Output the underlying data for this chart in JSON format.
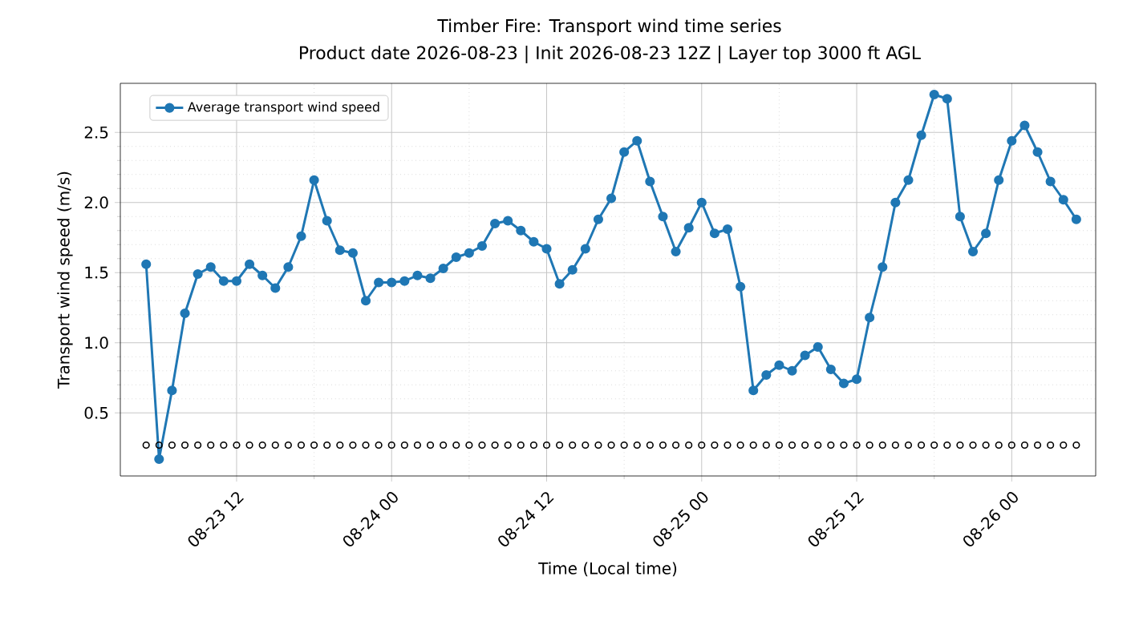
{
  "chart_data": {
    "type": "line",
    "title": "Timber Fire: Transport wind time series",
    "subtitle": "Product date 2026-08-23 | Init 2026-08-23 12Z | Layer top 3000 ft AGL",
    "xlabel": "Time (Local time)",
    "ylabel": "Transport wind speed (m/s)",
    "x": [
      "2026-08-23T05:00",
      "2026-08-23T06:00",
      "2026-08-23T07:00",
      "2026-08-23T08:00",
      "2026-08-23T09:00",
      "2026-08-23T10:00",
      "2026-08-23T11:00",
      "2026-08-23T12:00",
      "2026-08-23T13:00",
      "2026-08-23T14:00",
      "2026-08-23T15:00",
      "2026-08-23T16:00",
      "2026-08-23T17:00",
      "2026-08-23T18:00",
      "2026-08-23T19:00",
      "2026-08-23T20:00",
      "2026-08-23T21:00",
      "2026-08-23T22:00",
      "2026-08-23T23:00",
      "2026-08-24T00:00",
      "2026-08-24T01:00",
      "2026-08-24T02:00",
      "2026-08-24T03:00",
      "2026-08-24T04:00",
      "2026-08-24T05:00",
      "2026-08-24T06:00",
      "2026-08-24T07:00",
      "2026-08-24T08:00",
      "2026-08-24T09:00",
      "2026-08-24T10:00",
      "2026-08-24T11:00",
      "2026-08-24T12:00",
      "2026-08-24T13:00",
      "2026-08-24T14:00",
      "2026-08-24T15:00",
      "2026-08-24T16:00",
      "2026-08-24T17:00",
      "2026-08-24T18:00",
      "2026-08-24T19:00",
      "2026-08-24T20:00",
      "2026-08-24T21:00",
      "2026-08-24T22:00",
      "2026-08-24T23:00",
      "2026-08-25T00:00",
      "2026-08-25T01:00",
      "2026-08-25T02:00",
      "2026-08-25T03:00",
      "2026-08-25T04:00",
      "2026-08-25T05:00",
      "2026-08-25T06:00",
      "2026-08-25T07:00",
      "2026-08-25T08:00",
      "2026-08-25T09:00",
      "2026-08-25T10:00",
      "2026-08-25T11:00",
      "2026-08-25T12:00",
      "2026-08-25T13:00",
      "2026-08-25T14:00",
      "2026-08-25T15:00",
      "2026-08-25T16:00",
      "2026-08-25T17:00",
      "2026-08-25T18:00",
      "2026-08-25T19:00",
      "2026-08-25T20:00",
      "2026-08-25T21:00",
      "2026-08-25T22:00",
      "2026-08-25T23:00",
      "2026-08-26T00:00",
      "2026-08-26T01:00",
      "2026-08-26T02:00",
      "2026-08-26T03:00",
      "2026-08-26T04:00",
      "2026-08-26T05:00"
    ],
    "series": [
      {
        "name": "Average transport wind speed",
        "color": "#1f77b4",
        "marker": "circle",
        "values": [
          1.56,
          0.17,
          0.66,
          1.21,
          1.49,
          1.54,
          1.44,
          1.44,
          1.56,
          1.48,
          1.39,
          1.54,
          1.76,
          2.16,
          1.87,
          1.66,
          1.64,
          1.3,
          1.43,
          1.43,
          1.44,
          1.48,
          1.46,
          1.53,
          1.61,
          1.64,
          1.69,
          1.85,
          1.87,
          1.8,
          1.72,
          1.67,
          1.42,
          1.52,
          1.67,
          1.88,
          2.03,
          2.36,
          2.44,
          2.15,
          1.9,
          1.65,
          1.82,
          2.0,
          1.78,
          1.81,
          1.4,
          0.66,
          0.77,
          0.84,
          0.8,
          0.91,
          0.97,
          0.81,
          0.71,
          0.74,
          1.18,
          1.54,
          2.0,
          2.16,
          2.48,
          2.77,
          2.74,
          1.9,
          1.65,
          1.78,
          2.16,
          2.44,
          2.55,
          2.36,
          2.15,
          2.02,
          1.88
        ]
      },
      {
        "type": "scatter",
        "color": "#000000",
        "marker": "circle",
        "values": [
          0.27,
          0.27,
          0.27,
          0.27,
          0.27,
          0.27,
          0.27,
          0.27,
          0.27,
          0.27,
          0.27,
          0.27,
          0.27,
          0.27,
          0.27,
          0.27,
          0.27,
          0.27,
          0.27,
          0.27,
          0.27,
          0.27,
          0.27,
          0.27,
          0.27,
          0.27,
          0.27,
          0.27,
          0.27,
          0.27,
          0.27,
          0.27,
          0.27,
          0.27,
          0.27,
          0.27,
          0.27,
          0.27,
          0.27,
          0.27,
          0.27,
          0.27,
          0.27,
          0.27,
          0.27,
          0.27,
          0.27,
          0.27,
          0.27,
          0.27,
          0.27,
          0.27,
          0.27,
          0.27,
          0.27,
          0.27,
          0.27,
          0.27,
          0.27,
          0.27,
          0.27,
          0.27,
          0.27,
          0.27,
          0.27,
          0.27,
          0.27,
          0.27,
          0.27,
          0.27,
          0.27,
          0.27,
          0.27
        ]
      }
    ],
    "xlim": [
      "2026-08-23T03:00",
      "2026-08-26T06:30"
    ],
    "xticks": [
      {
        "value": "2026-08-23T12:00",
        "label": "08-23 12"
      },
      {
        "value": "2026-08-24T00:00",
        "label": "08-24 00"
      },
      {
        "value": "2026-08-24T12:00",
        "label": "08-24 12"
      },
      {
        "value": "2026-08-25T00:00",
        "label": "08-25 00"
      },
      {
        "value": "2026-08-25T12:00",
        "label": "08-25 12"
      },
      {
        "value": "2026-08-26T00:00",
        "label": "08-26 00"
      }
    ],
    "ylim": [
      0.05,
      2.85
    ],
    "yticks": [
      0.5,
      {
        "value": 1,
        "label": "1.0"
      },
      1.5,
      {
        "value": 2,
        "label": "2.0"
      },
      2.5
    ],
    "grid": true,
    "legend": "top left",
    "line_style": "solid"
  }
}
